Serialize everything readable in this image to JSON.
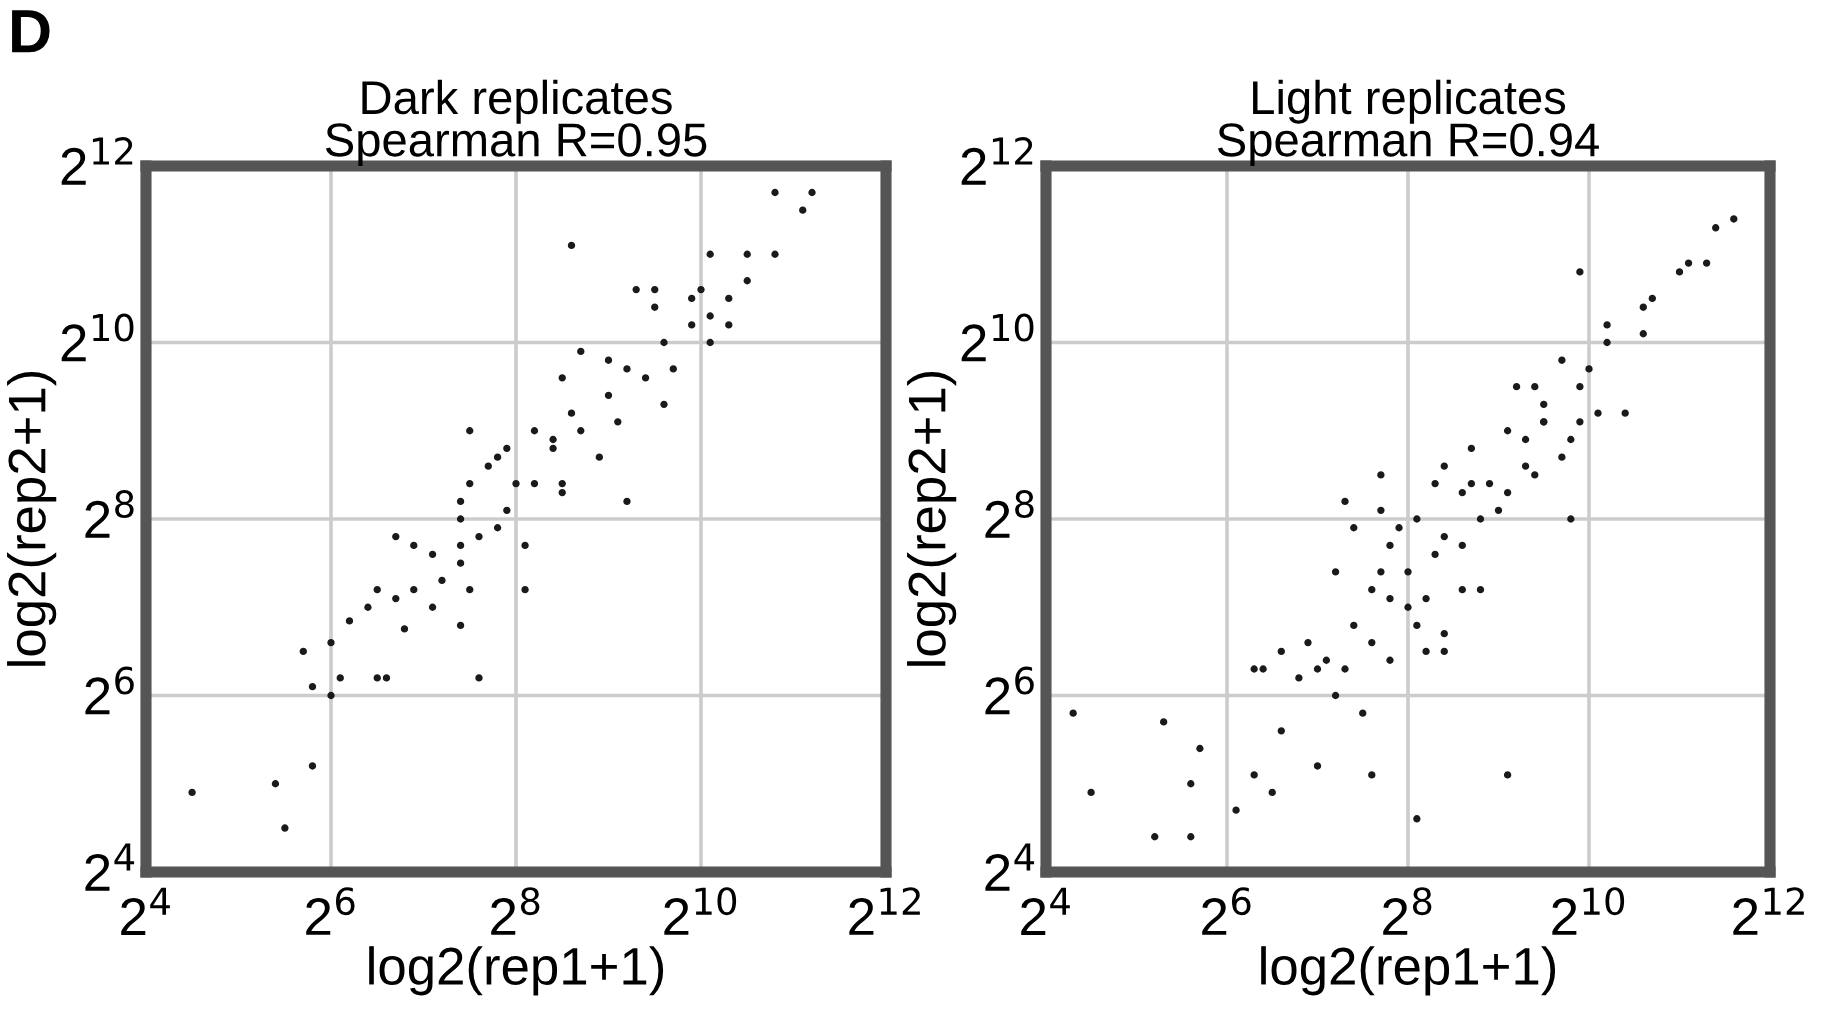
{
  "chart_data": [
    {
      "type": "scatter",
      "title": "Dark replicates\nSpearman R=0.95",
      "xlabel": "log2(rep1+1)",
      "ylabel": "log2(rep2+1)",
      "annotations": [
        "D"
      ],
      "xlim": [
        16,
        4096
      ],
      "ylim": [
        16,
        4096
      ],
      "xticks": [
        {
          "value": 16,
          "label": "2$^{4}$"
        },
        {
          "value": 64,
          "label": "2$^{6}$"
        },
        {
          "value": 256,
          "label": "2$^{8}$"
        },
        {
          "value": 1024,
          "label": "2$^{10}$"
        },
        {
          "value": 4096,
          "label": "2$^{12}$"
        }
      ],
      "yticks": [
        {
          "value": 16,
          "label": "2$^{4}$"
        },
        {
          "value": 64,
          "label": "2$^{6}$"
        },
        {
          "value": 256,
          "label": "2$^{8}$"
        },
        {
          "value": 1024,
          "label": "2$^{10}$"
        },
        {
          "value": 4096,
          "label": "2$^{12}$"
        }
      ],
      "log": "xy",
      "grid": true,
      "marker": "circle",
      "series": [
        {
          "color": "#1a1a1a",
          "x": [
            22.6,
            42.2,
            45.3,
            55.7,
            52.0,
            55.7,
            64,
            64,
            68.6,
            73.5,
            90.5,
            97.0,
            84.4,
            90.5,
            104,
            111,
            104,
            119,
            119,
            137,
            137,
            147,
            169,
            169,
            181,
            169,
            169,
            169,
            194,
            194,
            223,
            181,
            181,
            208,
            223,
            239,
            239,
            274,
            274,
            256,
            294,
            294,
            338,
            362,
            362,
            362,
            388,
            416,
            416,
            478,
            512,
            549,
            588,
            588,
            630,
            724,
            676,
            724,
            776,
            776,
            832,
            955,
            955,
            1024,
            1097,
            1097,
            1097,
            1261,
            1261,
            1448,
            1448,
            1783,
            1783,
            2195,
            2353,
            512,
            338,
            388
          ],
          "values": [
            29.9,
            32,
            22.6,
            36.8,
            90.5,
            68.6,
            64,
            97.0,
            73.5,
            115,
            73.5,
            73.5,
            128,
            147,
            137,
            108,
            223,
            208,
            147,
            128,
            194,
            158,
            111,
            181,
            147,
            208,
            256,
            294,
            73.5,
            223,
            239,
            338,
            512,
            388,
            416,
            446,
            274,
            147,
            208,
            338,
            338,
            512,
            478,
            338,
            315,
            776,
            2195,
            955,
            512,
            416,
            676,
            549,
            294,
            832,
            1552,
            1351,
            776,
            1552,
            630,
            1024,
            832,
            1448,
            1176,
            1552,
            2048,
            1024,
            1261,
            1176,
            1448,
            1663,
            2048,
            2048,
            3327,
            2896,
            3327,
            891,
            446,
            588
          ]
        }
      ]
    },
    {
      "type": "scatter",
      "title": "Light replicates\nSpearman R=0.94",
      "xlabel": "log2(rep1+1)",
      "ylabel": "log2(rep2+1)",
      "xlim": [
        16,
        4096
      ],
      "ylim": [
        16,
        4096
      ],
      "xticks": [
        {
          "value": 16,
          "label": "2$^{4}$"
        },
        {
          "value": 64,
          "label": "2$^{6}$"
        },
        {
          "value": 256,
          "label": "2$^{8}$"
        },
        {
          "value": 1024,
          "label": "2$^{10}$"
        },
        {
          "value": 4096,
          "label": "2$^{12}$"
        }
      ],
      "yticks": [
        {
          "value": 16,
          "label": "2$^{4}$"
        },
        {
          "value": 64,
          "label": "2$^{6}$"
        },
        {
          "value": 256,
          "label": "2$^{8}$"
        },
        {
          "value": 1024,
          "label": "2$^{10}$"
        },
        {
          "value": 4096,
          "label": "2$^{12}$"
        }
      ],
      "log": "xy",
      "grid": true,
      "marker": "circle",
      "series": [
        {
          "color": "#1a1a1a",
          "x": [
            19.7,
            22.6,
            39.4,
            36.8,
            48.5,
            48.5,
            52.0,
            68.6,
            78.8,
            90.5,
            97.0,
            78.8,
            84.4,
            97.0,
            111,
            119,
            128,
            128,
            137,
            147,
            147,
            158,
            169,
            169,
            158,
            181,
            194,
            194,
            194,
            208,
            208,
            208,
            223,
            223,
            223,
            256,
            256,
            239,
            274,
            274,
            274,
            294,
            294,
            315,
            315,
            338,
            338,
            338,
            338,
            388,
            388,
            388,
            416,
            416,
            446,
            446,
            478,
            512,
            549,
            549,
            549,
            588,
            630,
            676,
            630,
            676,
            724,
            724,
            832,
            832,
            891,
            955,
            891,
            955,
            1024,
            1097,
            1176,
            1176,
            1351,
            1552,
            1552,
            1663,
            2048,
            2195,
            2521,
            2702,
            3104,
            724,
            955
          ],
          "values": [
            55.7,
            29.9,
            52.0,
            21.1,
            21.1,
            32,
            42.2,
            26.0,
            34.3,
            29.9,
            48.5,
            78.8,
            78.8,
            90.5,
            73.5,
            97.0,
            78.8,
            36.8,
            84.4,
            64,
            169,
            294,
            239,
            111,
            78.8,
            55.7,
            97.0,
            34.3,
            147,
            169,
            274,
            362,
            84.4,
            208,
            137,
            169,
            128,
            239,
            111,
            24.3,
            256,
            90.5,
            137,
            338,
            194,
            90.5,
            104,
            388,
            223,
            208,
            147,
            315,
            446,
            338,
            256,
            147,
            338,
            274,
            315,
            34.3,
            512,
            724,
            388,
            362,
            478,
            724,
            630,
            549,
            891,
            416,
            256,
            1783,
            478,
            549,
            832,
            588,
            1024,
            1176,
            588,
            1351,
            1097,
            1448,
            1783,
            1911,
            1911,
            2521,
            2702,
            549,
            724
          ]
        }
      ]
    }
  ]
}
